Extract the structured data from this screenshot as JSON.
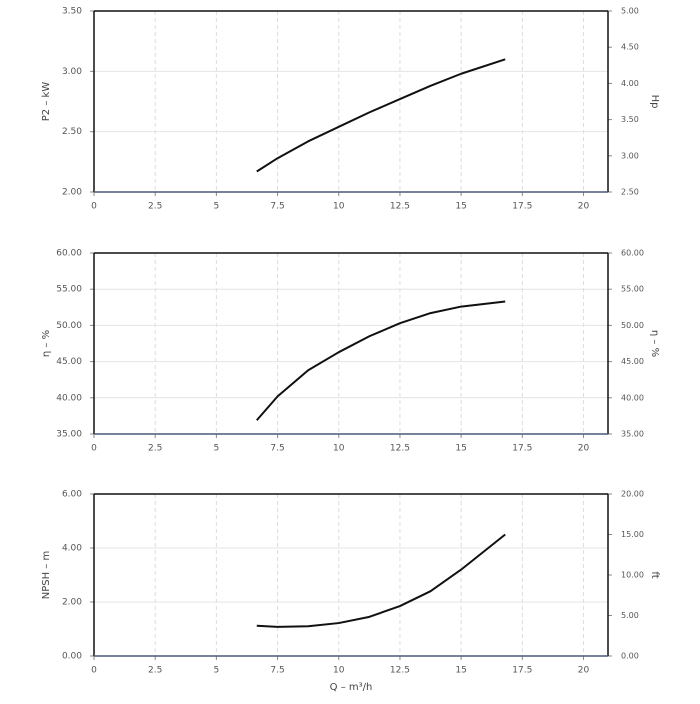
{
  "chart_data": [
    {
      "type": "line",
      "color": "#111111",
      "x": [
        6.65,
        7.5,
        8.75,
        10,
        11.25,
        12.5,
        13.75,
        15,
        16.8
      ],
      "values": [
        2.17,
        2.28,
        2.42,
        2.54,
        2.66,
        2.77,
        2.88,
        2.98,
        3.1
      ],
      "xlim": [
        0,
        21
      ],
      "xticks": [
        0,
        2.5,
        5,
        7.5,
        10,
        12.5,
        15,
        17.5,
        20
      ],
      "ylim": [
        2,
        3.5
      ],
      "yticks": [
        {
          "value": 2,
          "label": "2.00"
        },
        {
          "value": 2.5,
          "label": "2.50"
        },
        {
          "value": 3,
          "label": "3.00"
        },
        {
          "value": 3.5,
          "label": "3.50"
        }
      ],
      "y2lim": [
        2.5,
        5
      ],
      "y2ticks": [
        {
          "value": 2.5,
          "label": "2.50"
        },
        {
          "value": 3,
          "label": "3.00"
        },
        {
          "value": 3.5,
          "label": "3.50"
        },
        {
          "value": 4,
          "label": "4.00"
        },
        {
          "value": 4.5,
          "label": "4.50"
        },
        {
          "value": 5,
          "label": "5.00"
        }
      ],
      "ylabel": "P2 – kW",
      "y2label": "Hp",
      "grid": true
    },
    {
      "type": "line",
      "color": "#111111",
      "x": [
        6.65,
        7.5,
        8.75,
        10,
        11.25,
        12.5,
        13.75,
        15,
        16.8
      ],
      "values": [
        36.9,
        40.2,
        43.8,
        46.3,
        48.5,
        50.3,
        51.7,
        52.6,
        53.3
      ],
      "xlim": [
        0,
        21
      ],
      "xticks": [
        0,
        2.5,
        5,
        7.5,
        10,
        12.5,
        15,
        17.5,
        20
      ],
      "ylim": [
        35,
        60
      ],
      "yticks": [
        {
          "value": 35,
          "label": "35.00"
        },
        {
          "value": 40,
          "label": "40.00"
        },
        {
          "value": 45,
          "label": "45.00"
        },
        {
          "value": 50,
          "label": "50.00"
        },
        {
          "value": 55,
          "label": "55.00"
        },
        {
          "value": 60,
          "label": "60.00"
        }
      ],
      "y2lim": [
        35,
        60
      ],
      "y2ticks": [
        {
          "value": 35,
          "label": "35.00"
        },
        {
          "value": 40,
          "label": "40.00"
        },
        {
          "value": 45,
          "label": "45.00"
        },
        {
          "value": 50,
          "label": "50.00"
        },
        {
          "value": 55,
          "label": "55.00"
        },
        {
          "value": 60,
          "label": "60.00"
        }
      ],
      "ylabel": "η – %",
      "y2label": "η – %",
      "grid": true
    },
    {
      "type": "line",
      "color": "#111111",
      "x": [
        6.65,
        7.5,
        8.75,
        10,
        11.25,
        12.5,
        13.75,
        15,
        16.8
      ],
      "values": [
        1.12,
        1.08,
        1.1,
        1.22,
        1.45,
        1.85,
        2.4,
        3.2,
        4.5
      ],
      "xlim": [
        0,
        21
      ],
      "xticks": [
        0,
        2.5,
        5,
        7.5,
        10,
        12.5,
        15,
        17.5,
        20
      ],
      "ylim": [
        0,
        6
      ],
      "yticks": [
        {
          "value": 0,
          "label": "0.00"
        },
        {
          "value": 2,
          "label": "2.00"
        },
        {
          "value": 4,
          "label": "4.00"
        },
        {
          "value": 6,
          "label": "6.00"
        }
      ],
      "y2lim": [
        0,
        20
      ],
      "y2ticks": [
        {
          "value": 0,
          "label": "0.00"
        },
        {
          "value": 5,
          "label": "5.00"
        },
        {
          "value": 10,
          "label": "10.00"
        },
        {
          "value": 15,
          "label": "15.00"
        },
        {
          "value": 20,
          "label": "20.00"
        }
      ],
      "ylabel": "NPSH – m",
      "y2label": "ft",
      "xlabel": "Q – m³/h",
      "grid": true
    }
  ]
}
